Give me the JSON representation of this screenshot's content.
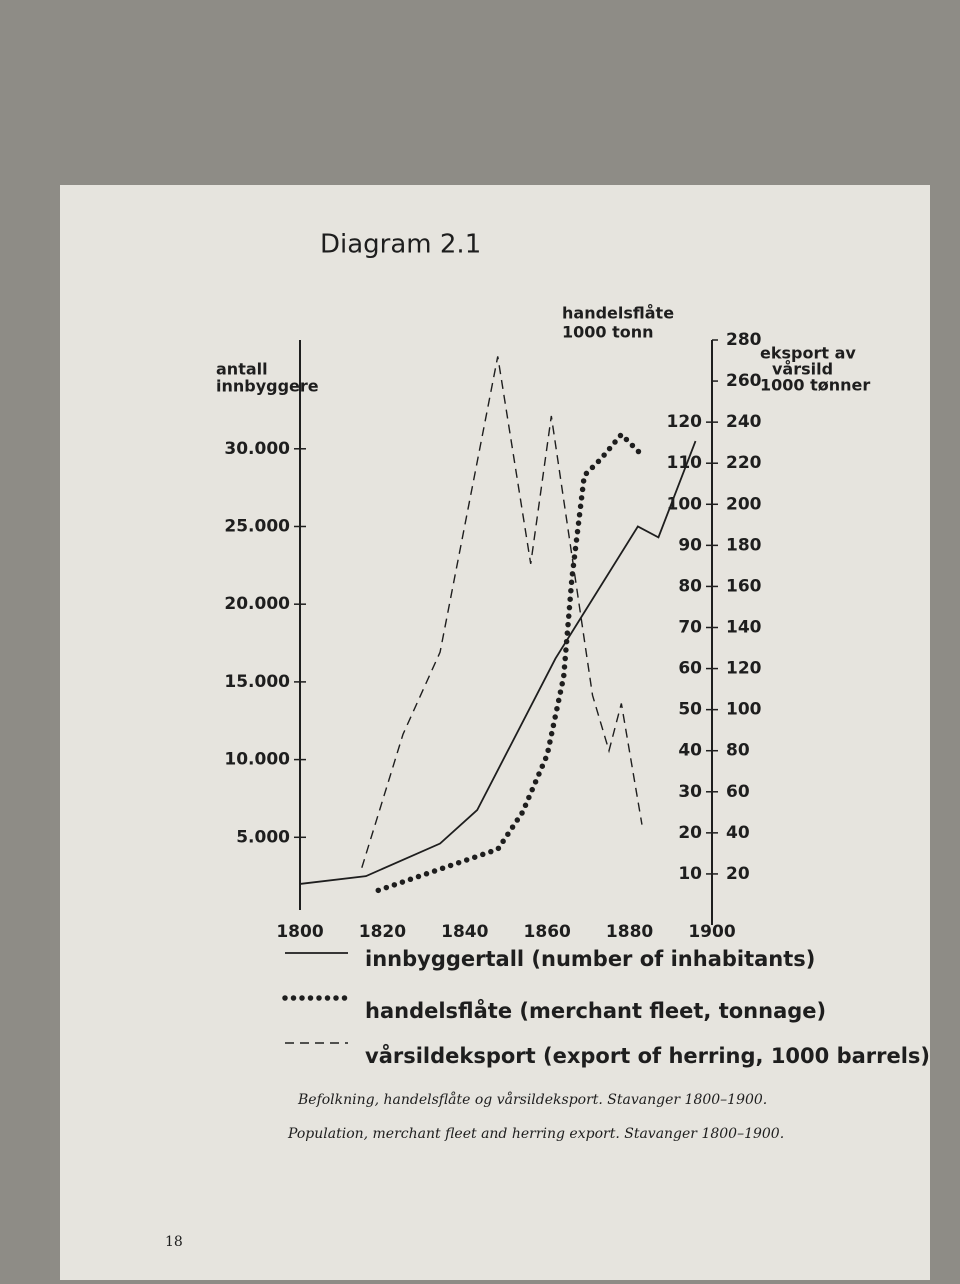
{
  "page_number": 18,
  "caption": [
    "Befolkning, handelsflåte og vårsildeksport. Stavanger 1800–1900.",
    "Population, merchant fleet and herring export. Stavanger 1800–1900."
  ],
  "chart_data": {
    "type": "line",
    "title": "Diagram 2.1",
    "ylabel": [
      "antall",
      "innbyggere"
    ],
    "y2label": [
      "handelsflåte",
      "1000 tonn"
    ],
    "y3label": [
      "eksport av",
      "vårsild",
      "1000 tønner"
    ],
    "xlim": [
      1800,
      1900
    ],
    "xticks": [
      1800,
      1820,
      1840,
      1860,
      1880,
      1900
    ],
    "ylim": [
      0,
      37000
    ],
    "yticks": [
      {
        "value": 5000,
        "label": "5.000"
      },
      {
        "value": 10000,
        "label": "10.000"
      },
      {
        "value": 15000,
        "label": "15.000"
      },
      {
        "value": 20000,
        "label": "20.000"
      },
      {
        "value": 25000,
        "label": "25.000"
      },
      {
        "value": 30000,
        "label": "30.000"
      }
    ],
    "y2lim": [
      0,
      140
    ],
    "y2ticks": [
      10,
      20,
      30,
      40,
      50,
      60,
      70,
      80,
      90,
      100,
      110,
      120
    ],
    "y3lim": [
      0,
      280
    ],
    "y3ticks": [
      20,
      40,
      60,
      80,
      100,
      120,
      140,
      160,
      180,
      200,
      220,
      240,
      260,
      280
    ],
    "series": [
      {
        "name": "innbyggertall (number of inhabitants)",
        "color": "#1e1e1e",
        "style": "solid",
        "axis": "y",
        "x": [
          1800,
          1816,
          1834,
          1843,
          1862,
          1882,
          1887,
          1896
        ],
        "values": [
          2000,
          2500,
          4600,
          6750,
          16500,
          25000,
          24300,
          30500
        ]
      },
      {
        "name": "handelsflåte (merchant fleet, tonnage)",
        "color": "#1e1e1e",
        "style": "dotted",
        "axis": "y2",
        "x": [
          1819,
          1848,
          1854,
          1860,
          1864,
          1866,
          1869,
          1873,
          1878,
          1883
        ],
        "values": [
          6,
          16,
          25,
          39,
          58,
          82,
          107,
          111,
          117,
          112
        ]
      },
      {
        "name": "vårsildeksport (export of herring, 1000 barrels)",
        "color": "#1e1e1e",
        "style": "dashed",
        "axis": "y3",
        "x": [
          1815,
          1825,
          1834,
          1848,
          1856,
          1861,
          1871,
          1875,
          1878,
          1883
        ],
        "values": [
          23,
          88,
          128,
          272,
          171,
          243,
          107,
          80,
          103,
          44
        ]
      }
    ]
  }
}
